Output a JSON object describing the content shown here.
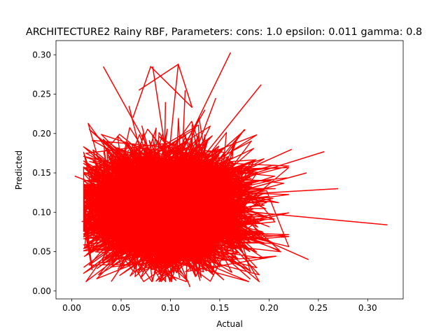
{
  "chart_data": {
    "type": "line",
    "title": "ARCHITECTURE2 Rainy RBF, Parameters: cons: 1.0 epsilon: 0.011 gamma: 0.8",
    "xlabel": "Actual",
    "ylabel": "Predicted",
    "xlim": [
      -0.016,
      0.336
    ],
    "ylim": [
      -0.01,
      0.318
    ],
    "xticks": [
      "0.00",
      "0.05",
      "0.10",
      "0.15",
      "0.20",
      "0.25",
      "0.30"
    ],
    "yticks": [
      "0.00",
      "0.05",
      "0.10",
      "0.15",
      "0.20",
      "0.25",
      "0.30"
    ],
    "grid": false,
    "legend": "none",
    "line_color": "#ff0000",
    "series": [
      {
        "x": [
          0.003,
          0.032,
          0.046,
          0.058,
          0.071,
          0.082,
          0.095,
          0.108,
          0.115,
          0.122,
          0.135,
          0.146,
          0.161,
          0.176,
          0.192,
          0.205,
          0.223,
          0.238,
          0.256,
          0.27,
          0.32,
          0.24,
          0.205,
          0.181,
          0.15,
          0.12,
          0.09,
          0.06,
          0.04,
          0.02,
          0.012,
          0.01
        ],
        "y": [
          0.146,
          0.285,
          0.12,
          0.235,
          0.21,
          0.285,
          0.24,
          0.288,
          0.255,
          0.19,
          0.23,
          0.245,
          0.303,
          0.205,
          0.262,
          0.16,
          0.18,
          0.15,
          0.177,
          0.13,
          0.084,
          0.04,
          0.06,
          0.015,
          0.03,
          0.005,
          0.02,
          0.05,
          0.012,
          0.035,
          0.03,
          0.088
        ]
      }
    ]
  }
}
